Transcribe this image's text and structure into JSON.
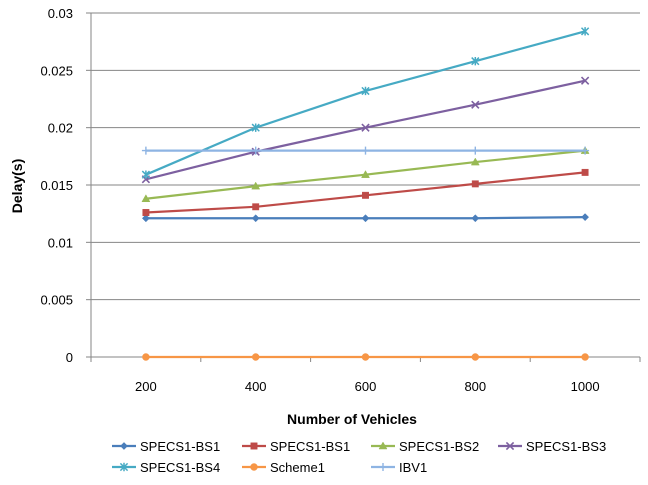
{
  "chart_data": {
    "type": "line",
    "title": "",
    "xlabel": "Number of Vehicles",
    "ylabel": "Delay(s)",
    "categories": [
      "200",
      "400",
      "600",
      "800",
      "1000"
    ],
    "x": [
      200,
      400,
      600,
      800,
      1000
    ],
    "ylim": [
      0,
      0.03
    ],
    "yticks": [
      "0",
      "0.005",
      "0.01",
      "0.015",
      "0.02",
      "0.025",
      "0.03"
    ],
    "ytick_values": [
      0,
      0.005,
      0.01,
      0.015,
      0.02,
      0.025,
      0.03
    ],
    "grid": "horizontal",
    "legend_position": "bottom",
    "series": [
      {
        "name": "SPECS1-BS1",
        "color": "#4a7ebb",
        "marker": "diamond",
        "values": [
          0.0121,
          0.0121,
          0.0121,
          0.0121,
          0.0122
        ]
      },
      {
        "name": "SPECS1-BS1",
        "color": "#be4b48",
        "marker": "square",
        "values": [
          0.0126,
          0.0131,
          0.0141,
          0.0151,
          0.0161
        ]
      },
      {
        "name": "SPECS1-BS2",
        "color": "#98b954",
        "marker": "triangle",
        "values": [
          0.0138,
          0.0149,
          0.0159,
          0.017,
          0.018
        ]
      },
      {
        "name": "SPECS1-BS3",
        "color": "#7d60a0",
        "marker": "x",
        "values": [
          0.0155,
          0.0179,
          0.02,
          0.022,
          0.0241
        ]
      },
      {
        "name": "SPECS1-BS4",
        "color": "#46aac4",
        "marker": "star",
        "values": [
          0.0159,
          0.02,
          0.0232,
          0.0258,
          0.0284
        ]
      },
      {
        "name": "Scheme1",
        "color": "#f79646",
        "marker": "circle",
        "values": [
          0,
          0,
          0,
          0,
          0
        ]
      },
      {
        "name": "IBV1",
        "color": "#8eb4e3",
        "marker": "plus",
        "values": [
          0.018,
          0.018,
          0.018,
          0.018,
          0.018
        ]
      }
    ]
  }
}
